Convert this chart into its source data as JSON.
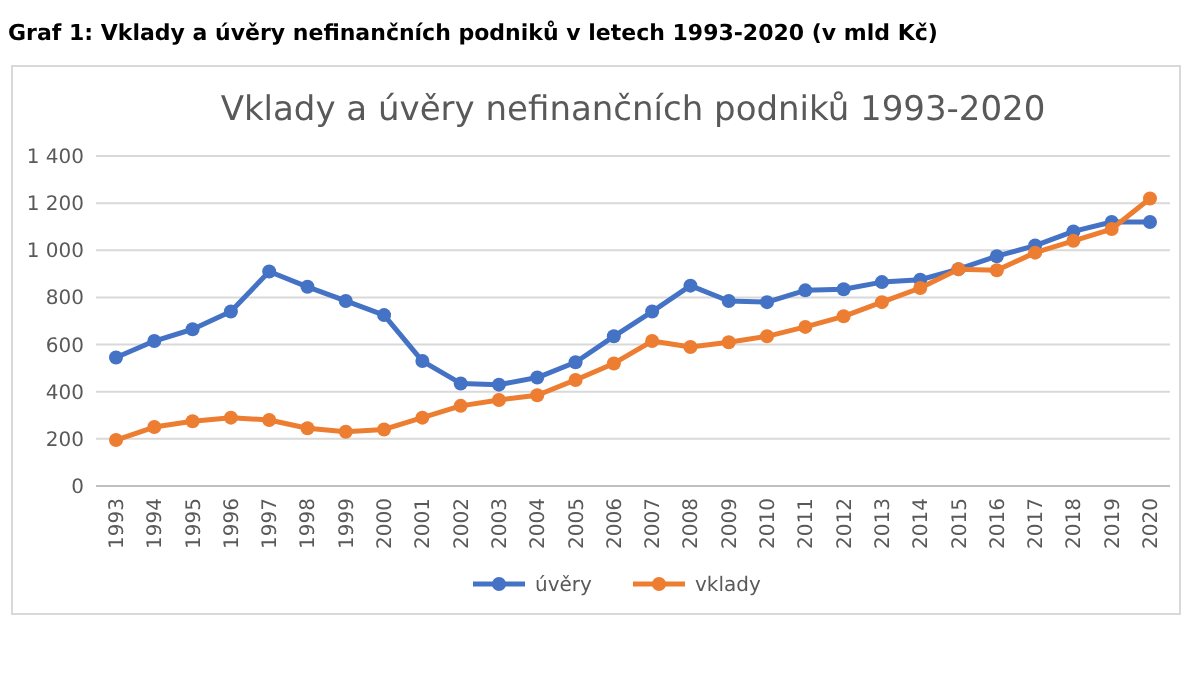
{
  "chart_data": {
    "type": "line",
    "title": "Vklady a úvěry nefinančních podniků 1993-2020",
    "subtitle": "Graf 1: Vklady a úvěry nefinančních podniků v letech 1993-2020 (v mld Kč)",
    "categories": [
      "1993",
      "1994",
      "1995",
      "1996",
      "1997",
      "1998",
      "1999",
      "2000",
      "2001",
      "2002",
      "2003",
      "2004",
      "2005",
      "2006",
      "2007",
      "2008",
      "2009",
      "2010",
      "2011",
      "2012",
      "2013",
      "2014",
      "2015",
      "2016",
      "2017",
      "2018",
      "2019",
      "2020"
    ],
    "series": [
      {
        "name": "úvěry",
        "color": "#4472c4",
        "values": [
          545,
          615,
          665,
          740,
          910,
          845,
          785,
          725,
          530,
          435,
          430,
          460,
          525,
          635,
          740,
          850,
          785,
          780,
          830,
          835,
          865,
          875,
          920,
          975,
          1020,
          1080,
          1120,
          1120
        ]
      },
      {
        "name": "vklady",
        "color": "#ed7d31",
        "values": [
          195,
          250,
          275,
          290,
          280,
          245,
          230,
          240,
          290,
          340,
          365,
          385,
          450,
          520,
          615,
          590,
          610,
          635,
          675,
          720,
          780,
          840,
          920,
          915,
          990,
          1040,
          1090,
          1220
        ]
      }
    ],
    "ylim": [
      0,
      1400
    ],
    "yticks": [
      0,
      {
        "value": 200,
        "label": "200"
      },
      {
        "value": 400,
        "label": "400"
      },
      {
        "value": 600,
        "label": "600"
      },
      {
        "value": 800,
        "label": "800"
      },
      {
        "value": 1000,
        "label": "1 000"
      },
      {
        "value": 1200,
        "label": "1 200"
      },
      {
        "value": 1400,
        "label": "1 400"
      }
    ],
    "grid": "y",
    "legend": "bottom",
    "marker": "circle",
    "line_style": "solid"
  }
}
